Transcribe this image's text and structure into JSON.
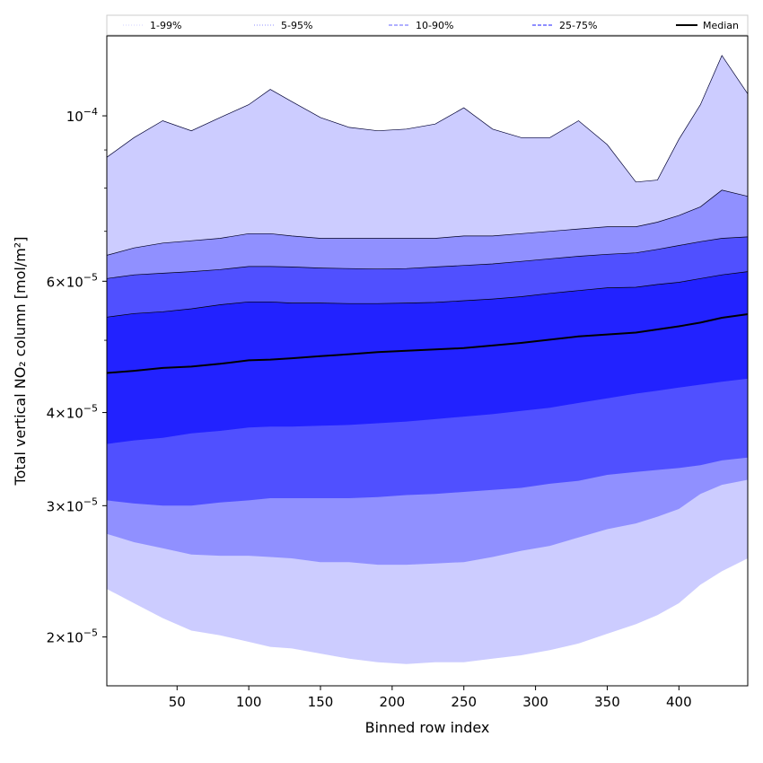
{
  "chart_data": {
    "type": "area",
    "title": "",
    "xlabel": "Binned row index",
    "ylabel": "Total vertical NO₂ column [mol/m²]",
    "yscale": "log",
    "xlim": [
      1,
      448
    ],
    "ylim": [
      1.72e-05,
      0.000128
    ],
    "x_ticks": [
      50,
      100,
      150,
      200,
      250,
      300,
      350,
      400
    ],
    "y_ticks": [
      {
        "value": 0.0001,
        "mantissa": "10",
        "exp": "−4",
        "label_kind": "pow"
      },
      {
        "value": 6e-05,
        "mantissa": "6×10",
        "exp": "−5",
        "label_kind": "sci"
      },
      {
        "value": 4e-05,
        "mantissa": "4×10",
        "exp": "−5",
        "label_kind": "sci"
      },
      {
        "value": 3e-05,
        "mantissa": "3×10",
        "exp": "−5",
        "label_kind": "sci"
      },
      {
        "value": 2e-05,
        "mantissa": "2×10",
        "exp": "−5",
        "label_kind": "sci"
      }
    ],
    "x": [
      1,
      20,
      40,
      60,
      80,
      100,
      115,
      130,
      150,
      170,
      190,
      210,
      230,
      250,
      270,
      290,
      310,
      330,
      350,
      370,
      385,
      400,
      415,
      430,
      448
    ],
    "bands": [
      {
        "name": "1-99%",
        "color": "#ccccff",
        "upper": [
          8.8e-05,
          9.35e-05,
          9.85e-05,
          9.55e-05,
          9.95e-05,
          0.0001035,
          0.0001085,
          0.0001045,
          9.95e-05,
          9.65e-05,
          9.55e-05,
          9.6e-05,
          9.75e-05,
          0.0001025,
          9.6e-05,
          9.35e-05,
          9.35e-05,
          9.85e-05,
          9.15e-05,
          8.15e-05,
          8.2e-05,
          9.3e-05,
          0.0001035,
          0.0001205,
          0.000107
        ],
        "lower": [
          2.32e-05,
          2.22e-05,
          2.12e-05,
          2.04e-05,
          2.01e-05,
          1.97e-05,
          1.94e-05,
          1.93e-05,
          1.9e-05,
          1.87e-05,
          1.85e-05,
          1.84e-05,
          1.85e-05,
          1.85e-05,
          1.87e-05,
          1.89e-05,
          1.92e-05,
          1.96e-05,
          2.02e-05,
          2.08e-05,
          2.14e-05,
          2.22e-05,
          2.35e-05,
          2.45e-05,
          2.55e-05
        ]
      },
      {
        "name": "5-95%",
        "color": "#9090ff",
        "upper": [
          6.5e-05,
          6.65e-05,
          6.75e-05,
          6.8e-05,
          6.85e-05,
          6.95e-05,
          6.95e-05,
          6.9e-05,
          6.85e-05,
          6.85e-05,
          6.85e-05,
          6.85e-05,
          6.85e-05,
          6.9e-05,
          6.9e-05,
          6.95e-05,
          7e-05,
          7.05e-05,
          7.1e-05,
          7.1e-05,
          7.2e-05,
          7.35e-05,
          7.55e-05,
          7.95e-05,
          7.8e-05
        ],
        "lower": [
          2.75e-05,
          2.68e-05,
          2.63e-05,
          2.58e-05,
          2.57e-05,
          2.57e-05,
          2.56e-05,
          2.55e-05,
          2.52e-05,
          2.52e-05,
          2.5e-05,
          2.5e-05,
          2.51e-05,
          2.52e-05,
          2.56e-05,
          2.61e-05,
          2.65e-05,
          2.72e-05,
          2.79e-05,
          2.84e-05,
          2.9e-05,
          2.97e-05,
          3.11e-05,
          3.2e-05,
          3.25e-05
        ]
      },
      {
        "name": "10-90%",
        "color": "#5050ff",
        "upper": [
          6.05e-05,
          6.12e-05,
          6.15e-05,
          6.18e-05,
          6.22e-05,
          6.28e-05,
          6.28e-05,
          6.27e-05,
          6.25e-05,
          6.24e-05,
          6.23e-05,
          6.24e-05,
          6.27e-05,
          6.3e-05,
          6.33e-05,
          6.38e-05,
          6.43e-05,
          6.48e-05,
          6.52e-05,
          6.55e-05,
          6.62e-05,
          6.7e-05,
          6.78e-05,
          6.85e-05,
          6.88e-05
        ],
        "lower": [
          3.05e-05,
          3.02e-05,
          3e-05,
          3e-05,
          3.03e-05,
          3.05e-05,
          3.07e-05,
          3.07e-05,
          3.07e-05,
          3.07e-05,
          3.08e-05,
          3.1e-05,
          3.11e-05,
          3.13e-05,
          3.15e-05,
          3.17e-05,
          3.21e-05,
          3.24e-05,
          3.3e-05,
          3.33e-05,
          3.35e-05,
          3.37e-05,
          3.4e-05,
          3.45e-05,
          3.48e-05
        ]
      },
      {
        "name": "25-75%",
        "color": "#2222ff",
        "upper": [
          5.37e-05,
          5.43e-05,
          5.46e-05,
          5.51e-05,
          5.58e-05,
          5.63e-05,
          5.63e-05,
          5.61e-05,
          5.61e-05,
          5.6e-05,
          5.6e-05,
          5.61e-05,
          5.62e-05,
          5.65e-05,
          5.68e-05,
          5.72e-05,
          5.78e-05,
          5.83e-05,
          5.88e-05,
          5.89e-05,
          5.94e-05,
          5.98e-05,
          6.05e-05,
          6.12e-05,
          6.18e-05
        ],
        "lower": [
          3.63e-05,
          3.67e-05,
          3.7e-05,
          3.75e-05,
          3.78e-05,
          3.82e-05,
          3.83e-05,
          3.83e-05,
          3.84e-05,
          3.85e-05,
          3.87e-05,
          3.89e-05,
          3.92e-05,
          3.95e-05,
          3.98e-05,
          4.02e-05,
          4.06e-05,
          4.12e-05,
          4.18e-05,
          4.24e-05,
          4.28e-05,
          4.32e-05,
          4.36e-05,
          4.4e-05,
          4.44e-05
        ]
      }
    ],
    "median": {
      "name": "Median",
      "color": "#000000",
      "values": [
        4.52e-05,
        4.55e-05,
        4.59e-05,
        4.61e-05,
        4.65e-05,
        4.7e-05,
        4.71e-05,
        4.73e-05,
        4.76e-05,
        4.79e-05,
        4.82e-05,
        4.84e-05,
        4.86e-05,
        4.88e-05,
        4.92e-05,
        4.96e-05,
        5.01e-05,
        5.06e-05,
        5.09e-05,
        5.12e-05,
        5.17e-05,
        5.22e-05,
        5.28e-05,
        5.36e-05,
        5.42e-05
      ]
    },
    "legend": {
      "placement": "top",
      "entries": [
        {
          "label": "1-99%",
          "color": "#dcdcff",
          "style": "dotted"
        },
        {
          "label": "5-95%",
          "color": "#a8a8ff",
          "style": "dotted"
        },
        {
          "label": "10-90%",
          "color": "#8080ff",
          "style": "dashed"
        },
        {
          "label": "25-75%",
          "color": "#4a4aff",
          "style": "dashed"
        },
        {
          "label": "Median",
          "color": "#000000",
          "style": "solid"
        }
      ]
    }
  }
}
